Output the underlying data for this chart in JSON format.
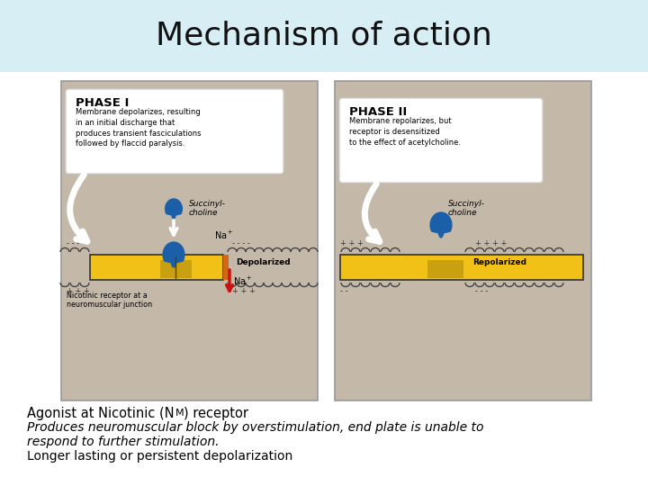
{
  "title": "Mechanism of action",
  "title_fontsize": 26,
  "title_color": "#111111",
  "title_bg_color": "#d8eef5",
  "bg_color": "#ffffff",
  "panel_bg_color": "#c4b9a8",
  "text_line2": "Produces neuromuscular block by overstimulation, end plate is unable to",
  "text_line3": "respond to further stimulation.",
  "text_line4": "Longer lasting or persistent depolarization",
  "phase1_title": "PHASE I",
  "phase1_text": "Membrane depolarizes, resulting\nin an initial discharge that\nproduces transient fasciculations\nfollowed by flaccid paralysis.",
  "phase2_title": "PHASE II",
  "phase2_text": "Membrane repolarizes, but\nreceptor is desensitized\nto the effect of acetylcholine.",
  "depolarized_label": "Depolarized",
  "repolarized_label": "Repolarized",
  "succinyl_label1": "Succinyl-\ncholine",
  "succinyl_label2": "Succinyl-\ncholine",
  "nm_receptor_label": "Nicotinic receptor at a\nneuromuscular junction",
  "yellow_color": "#f2c118",
  "red_color": "#cc1111",
  "blue_color": "#1a5fa8",
  "orange_color": "#d06818"
}
